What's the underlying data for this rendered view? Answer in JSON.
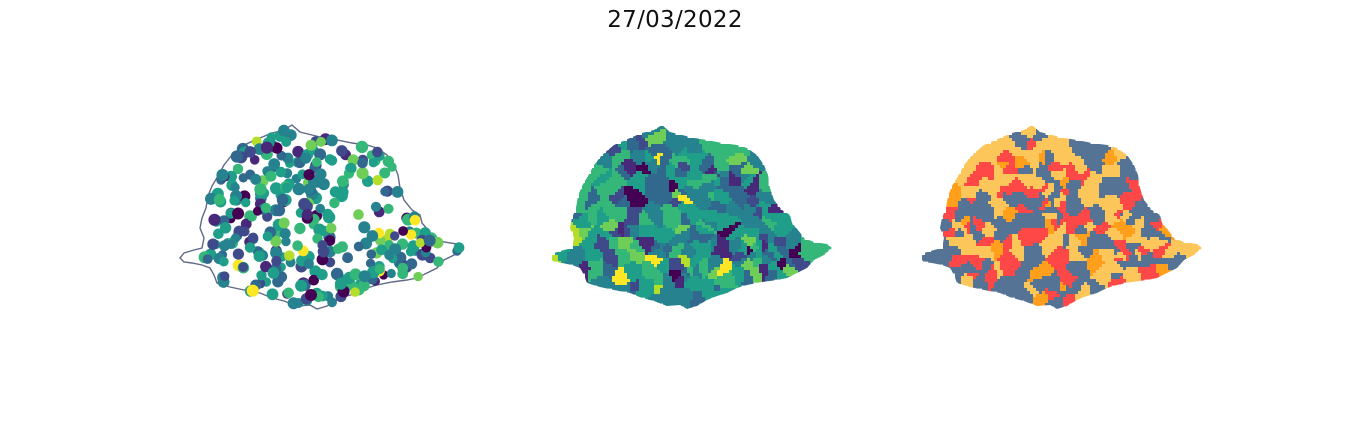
{
  "title": "27/03/2022",
  "colors": {
    "viridis": [
      "#440154",
      "#482878",
      "#3e4a89",
      "#31688e",
      "#26828e",
      "#1f9e89",
      "#35b779",
      "#6ece58",
      "#b5de2b",
      "#fde725"
    ],
    "outline": "#5f6a86",
    "categorical": {
      "low": "#557394",
      "medium": "#fcc65a",
      "high": "#fe4848",
      "very_high": "#ff9f1c"
    }
  },
  "maps": [
    {
      "id": "point-map",
      "type": "scatter",
      "style": "circles colored by viridis scale over state outline"
    },
    {
      "id": "choropleth-map",
      "type": "choropleth",
      "style": "municipalities filled with viridis scale"
    },
    {
      "id": "category-map",
      "type": "choropleth",
      "style": "municipalities filled with 4 categorical colors"
    }
  ]
}
